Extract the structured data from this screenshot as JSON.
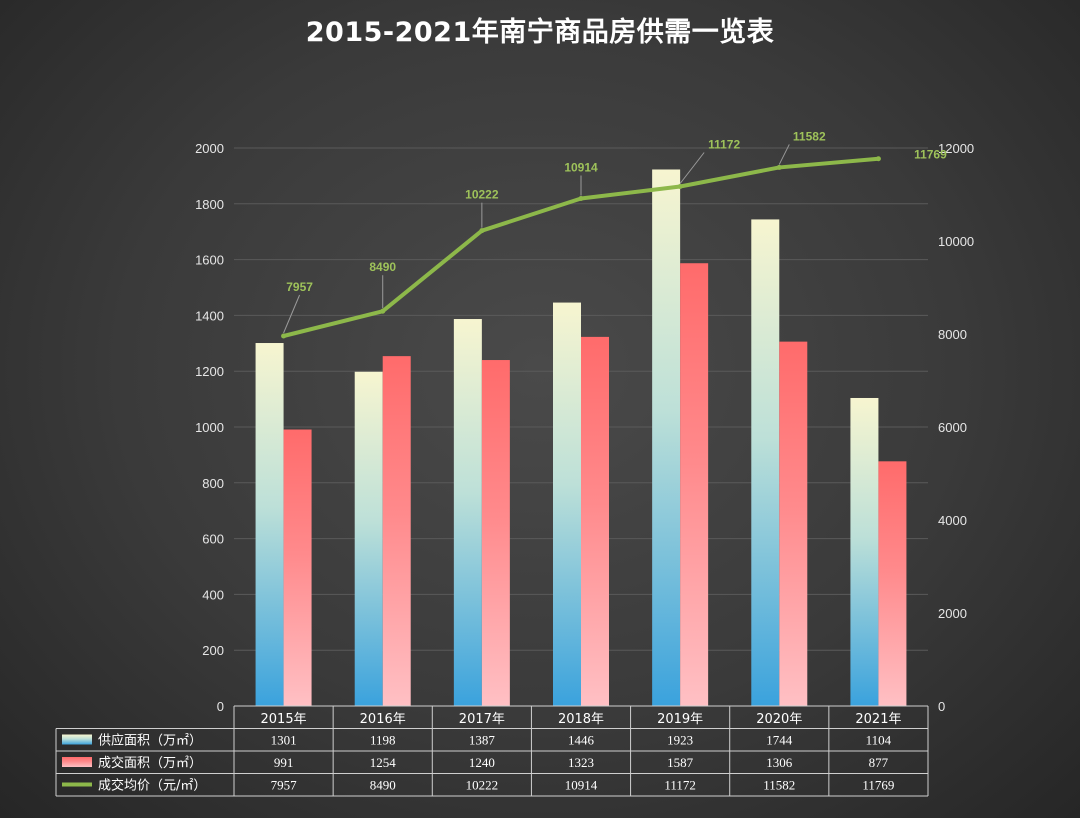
{
  "title": "2015-2021年南宁商品房供需一览表",
  "chart_data": {
    "type": "bar",
    "categories": [
      "2015年",
      "2016年",
      "2017年",
      "2018年",
      "2019年",
      "2020年",
      "2021年"
    ],
    "series": [
      {
        "name": "供应面积（万㎡）",
        "type": "bar",
        "axis": "left",
        "values": [
          1301,
          1198,
          1387,
          1446,
          1923,
          1744,
          1104
        ]
      },
      {
        "name": "成交面积（万㎡）",
        "type": "bar",
        "axis": "left",
        "values": [
          991,
          1254,
          1240,
          1323,
          1587,
          1306,
          877
        ]
      },
      {
        "name": "成交均价（元/㎡）",
        "type": "line",
        "axis": "right",
        "values": [
          7957,
          8490,
          10222,
          10914,
          11172,
          11582,
          11769
        ]
      }
    ],
    "left_axis": {
      "ylim": [
        0,
        2000
      ],
      "ticks": [
        0,
        200,
        400,
        600,
        800,
        1000,
        1200,
        1400,
        1600,
        1800,
        2000
      ]
    },
    "right_axis": {
      "ylim": [
        0,
        12000
      ],
      "ticks": [
        0,
        2000,
        4000,
        6000,
        8000,
        10000,
        12000
      ]
    },
    "data_labels": [
      "7957",
      "8490",
      "10222",
      "10914",
      "11172",
      "11582",
      "11769"
    ],
    "data_table": true,
    "colors": {
      "supply_top": "#f7f5d0",
      "supply_bottom": "#3aa2dd",
      "deal_top": "#ff6b6b",
      "deal_bottom": "#ffc0c4",
      "line": "#8db84a"
    }
  }
}
